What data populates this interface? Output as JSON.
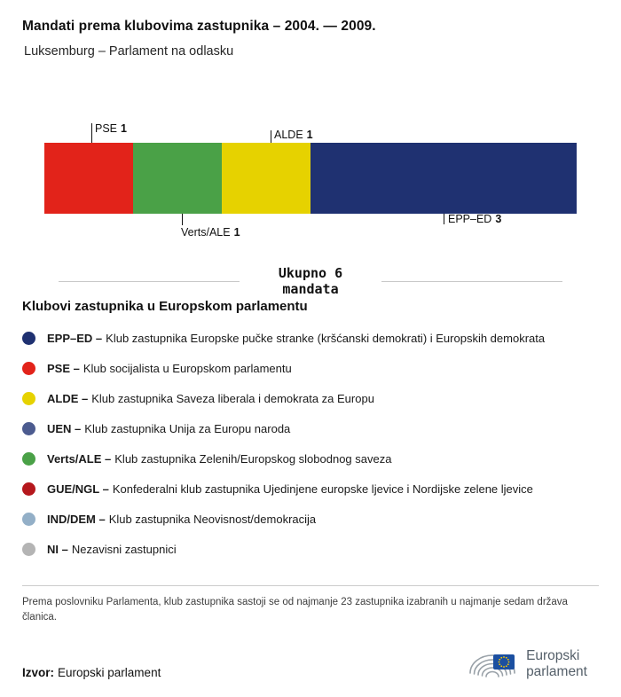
{
  "header": {
    "title": "Mandati prema klubovima zastupnika – 2004. — 2009.",
    "subtitle": "Luksemburg – Parlament na odlasku"
  },
  "chart_data": {
    "type": "bar",
    "variant": "horizontal_stacked",
    "title": "Mandati prema klubovima zastupnika – 2004. — 2009.",
    "subtitle": "Luksemburg – Parlament na odlasku",
    "total": 6,
    "total_line1": "Ukupno 6",
    "total_line2": "mandata",
    "categories": [
      "PSE",
      "Verts/ALE",
      "ALDE",
      "EPP–ED"
    ],
    "values": [
      1,
      1,
      1,
      3
    ],
    "segments": [
      {
        "name": "PSE",
        "value": 1,
        "color": "#e2231a",
        "callout": "top"
      },
      {
        "name": "Verts/ALE",
        "value": 1,
        "color": "#4aa147",
        "callout": "bottom"
      },
      {
        "name": "ALDE",
        "value": 1,
        "color": "#e6d200",
        "callout": "top"
      },
      {
        "name": "EPP–ED",
        "value": 3,
        "color": "#1f3171",
        "callout": "bottom"
      }
    ]
  },
  "legend": {
    "heading": "Klubovi zastupnika u Europskom parlamentu",
    "items": [
      {
        "abbr": "EPP–ED –",
        "description": "Klub zastupnika Europske pučke stranke (kršćanski demokrati) i Europskih demokrata",
        "color": "#1f3171"
      },
      {
        "abbr": "PSE –",
        "description": "Klub socijalista u Europskom parlamentu",
        "color": "#e2231a"
      },
      {
        "abbr": "ALDE –",
        "description": "Klub zastupnika Saveza liberala i demokrata za Europu",
        "color": "#e6d200"
      },
      {
        "abbr": "UEN –",
        "description": "Klub zastupnika Unija za Europu naroda",
        "color": "#4c5b8f"
      },
      {
        "abbr": "Verts/ALE –",
        "description": "Klub zastupnika Zelenih/Europskog slobodnog saveza",
        "color": "#4aa147"
      },
      {
        "abbr": "GUE/NGL –",
        "description": "Konfederalni klub zastupnika Ujedinjene europske ljevice i Nordijske zelene ljevice",
        "color": "#b5181d"
      },
      {
        "abbr": "IND/DEM –",
        "description": "Klub zastupnika Neovisnost/demokracija",
        "color": "#93afc7"
      },
      {
        "abbr": "NI –",
        "description": "Nezavisni zastupnici",
        "color": "#b4b4b4"
      }
    ]
  },
  "footnote": "Prema poslovniku Parlamenta, klub zastupnika sastoji se od najmanje 23 zastupnika izabranih u najmanje sedam država članica.",
  "source": {
    "label": "Izvor:",
    "value": "Europski parlament"
  },
  "logo": {
    "line1": "Europski",
    "line2": "parlament"
  }
}
